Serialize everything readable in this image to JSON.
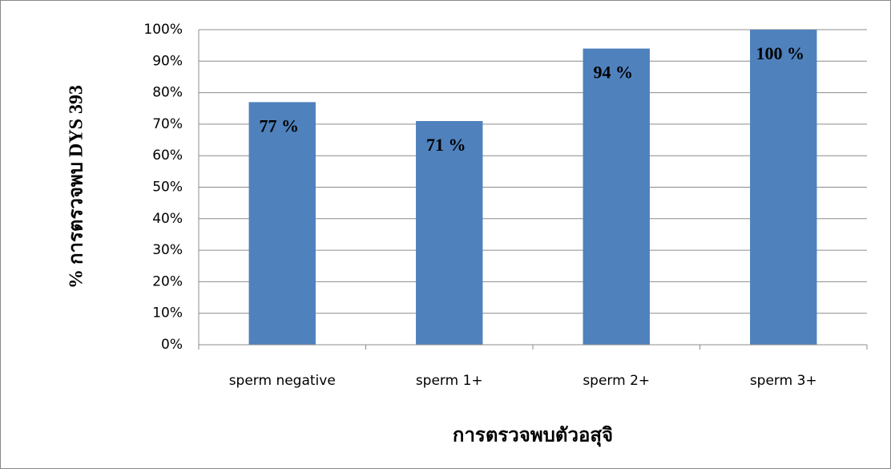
{
  "chart_data": {
    "type": "bar",
    "x_label": "การตรวจพบตัวอสุจิ",
    "y_label": "% การตรวจพบ DYS 393",
    "categories": [
      "sperm negative",
      "sperm 1+",
      "sperm 2+",
      "sperm 3+"
    ],
    "values": [
      77,
      71,
      94,
      100
    ],
    "value_labels": [
      "77 %",
      "71 %",
      "94 %",
      "100 %"
    ],
    "color": "#4f81bd",
    "ylim": [
      0,
      100
    ],
    "yticks": [
      {
        "value": 0,
        "label": "0%"
      },
      {
        "value": 10,
        "label": "10%"
      },
      {
        "value": 20,
        "label": "20%"
      },
      {
        "value": 30,
        "label": "30%"
      },
      {
        "value": 40,
        "label": "40%"
      },
      {
        "value": 50,
        "label": "50%"
      },
      {
        "value": 60,
        "label": "60%"
      },
      {
        "value": 70,
        "label": "70%"
      },
      {
        "value": 80,
        "label": "80%"
      },
      {
        "value": 90,
        "label": "90%"
      },
      {
        "value": 100,
        "label": "100%"
      }
    ],
    "grid": true
  }
}
